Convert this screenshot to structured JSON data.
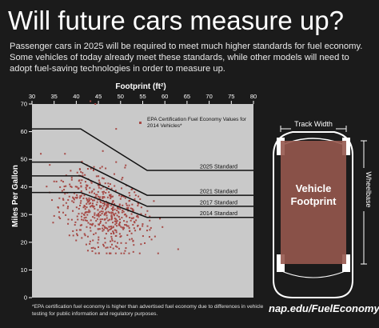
{
  "header": {
    "title": "Will future cars measure up?",
    "intro": "Passenger cars in 2025 will be required to meet much higher standards for fuel economy. Some vehicles of today already meet these standards, while other models will need to adopt fuel-saving technologies in order to measure up."
  },
  "footnote": "*EPA certification fuel economy is higher than advertised fuel economy due to differences in vehicle testing for public information and regulatory purposes.",
  "credit": "nap.edu/FuelEconomy",
  "diagram": {
    "track_width": "Track Width",
    "footprint_line1": "Vehicle",
    "footprint_line2": "Footprint",
    "wheelbase": "Wheelbase"
  },
  "colors": {
    "background": "#1b1b1b",
    "plot_background": "#c9c9c9",
    "points": "#a64a46",
    "standard_lines": "#111111",
    "footprint_fill": "#96584e"
  },
  "chart_data": {
    "type": "scatter",
    "xlabel": "Footprint (ft²)",
    "ylabel": "Miles Per Gallon",
    "xlim": [
      30,
      80
    ],
    "ylim": [
      0,
      70
    ],
    "xticks": [
      30,
      35,
      40,
      45,
      50,
      55,
      60,
      65,
      70,
      75,
      80
    ],
    "yticks": [
      0,
      10,
      20,
      30,
      40,
      50,
      60,
      70
    ],
    "x_axis_position": "top",
    "grid": false,
    "legend": {
      "position": "top-right",
      "label": "EPA Certification Fuel Economy Values for 2014 Vehicles*"
    },
    "standards": [
      {
        "name": "2025 Standard",
        "points": [
          [
            30,
            61
          ],
          [
            41,
            61
          ],
          [
            56,
            46
          ],
          [
            80,
            46
          ]
        ]
      },
      {
        "name": "2021 Standard",
        "points": [
          [
            30,
            49
          ],
          [
            41,
            49
          ],
          [
            56,
            37
          ],
          [
            80,
            37
          ]
        ]
      },
      {
        "name": "2017 Standard",
        "points": [
          [
            30,
            44
          ],
          [
            41,
            44
          ],
          [
            56,
            33
          ],
          [
            80,
            33
          ]
        ]
      },
      {
        "name": "2014 Standard",
        "points": [
          [
            30,
            38
          ],
          [
            41,
            38
          ],
          [
            56,
            29
          ],
          [
            80,
            29
          ]
        ]
      }
    ],
    "highlighted_points": [
      [
        43.2,
        71
      ],
      [
        44.3,
        70
      ],
      [
        49,
        61
      ],
      [
        49,
        49
      ],
      [
        51,
        47
      ],
      [
        46,
        53
      ],
      [
        63,
        17.5
      ],
      [
        32,
        52
      ],
      [
        34,
        38
      ],
      [
        35,
        42
      ],
      [
        57,
        21
      ]
    ],
    "scatter_summary": {
      "count": 560,
      "x_range": [
        32,
        63
      ],
      "y_range": [
        16,
        71
      ],
      "dense_region": {
        "x": [
          40,
          52
        ],
        "y": [
          22,
          40
        ]
      }
    }
  }
}
